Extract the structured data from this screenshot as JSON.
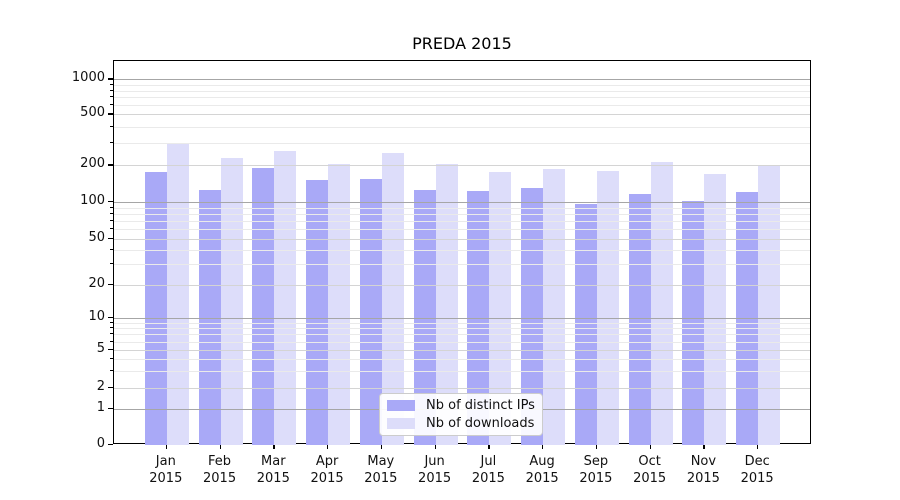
{
  "window": {
    "title": "PREDA 2015"
  },
  "chart_data": {
    "type": "bar",
    "title": "PREDA 2015",
    "months": [
      "Jan",
      "Feb",
      "Mar",
      "Apr",
      "May",
      "Jun",
      "Jul",
      "Aug",
      "Sep",
      "Oct",
      "Nov",
      "Dec"
    ],
    "year": "2015",
    "categories": [
      "Jan 2015",
      "Feb 2015",
      "Mar 2015",
      "Apr 2015",
      "May 2015",
      "Jun 2015",
      "Jul 2015",
      "Aug 2015",
      "Sep 2015",
      "Oct 2015",
      "Nov 2015",
      "Dec 2015"
    ],
    "series": [
      {
        "name": "Nb of distinct IPs",
        "color": "#a9a9f7",
        "values": [
          175,
          125,
          190,
          151,
          153,
          125,
          124,
          130,
          96,
          117,
          102,
          120
        ]
      },
      {
        "name": "Nb of downloads",
        "color": "#ddddfa",
        "values": [
          300,
          230,
          260,
          203,
          248,
          203,
          176,
          186,
          181,
          212,
          171,
          201
        ]
      }
    ],
    "yscale": "symlog",
    "yticks": [
      0,
      1,
      2,
      5,
      10,
      20,
      50,
      100,
      200,
      500,
      1000
    ],
    "ylim": [
      0,
      1400
    ],
    "grid": true,
    "legend_position": "lower-center",
    "legend_entries": [
      "Nb of distinct IPs",
      "Nb of downloads"
    ]
  },
  "colors": {
    "bar_distinct_ips": "#a9a9f7",
    "bar_downloads": "#ddddfa",
    "grid_major": "#a6a6a6",
    "grid_mid": "#d4d4d4",
    "grid_minor": "#eaeaea",
    "spine": "#000000",
    "text": "#111111",
    "legend_border": "#cccccc"
  }
}
